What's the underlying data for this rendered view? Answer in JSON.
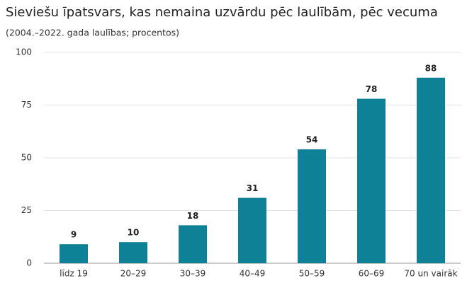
{
  "chart_data": {
    "type": "bar",
    "title": "Sieviešu īpatsvars, kas nemaina uzvārdu pēc laulībām, pēc vecuma",
    "subtitle": "(2004.–2022. gada laulības; procentos)",
    "categories": [
      "līdz 19",
      "20–29",
      "30–39",
      "40–49",
      "50–59",
      "60–69",
      "70 un vairāk"
    ],
    "values": [
      9,
      10,
      18,
      31,
      54,
      78,
      88
    ],
    "color": "#0e8196",
    "ylim": [
      0,
      100
    ],
    "yticks": [
      0,
      25,
      50,
      75,
      100
    ],
    "grid": true
  }
}
